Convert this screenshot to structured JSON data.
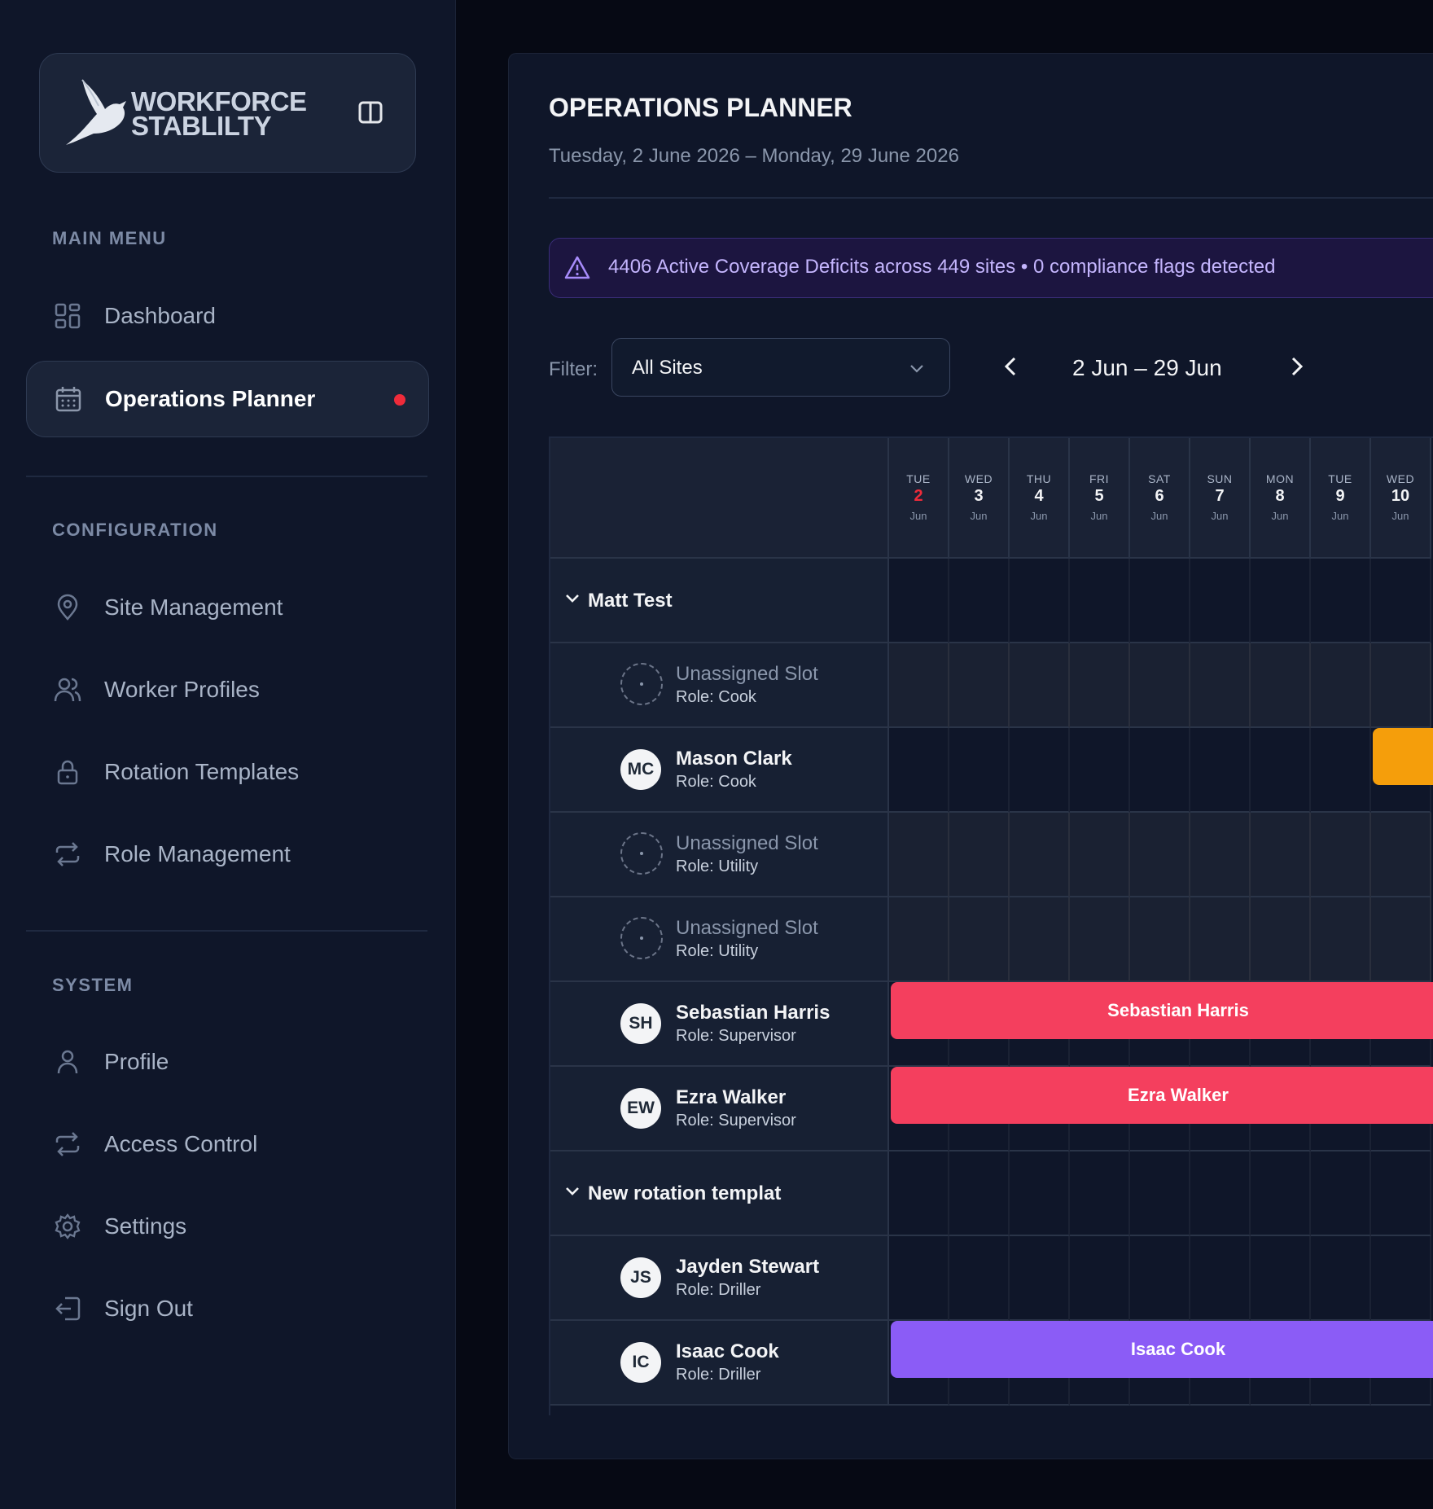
{
  "brand": {
    "line1": "WORKFORCE",
    "line2": "STABLILTY"
  },
  "sidebar": {
    "main_menu_label": "MAIN MENU",
    "main_items": [
      {
        "label": "Dashboard",
        "icon": "grid-icon"
      },
      {
        "label": "Operations Planner",
        "icon": "calendar-icon",
        "active": true
      }
    ],
    "config_label": "CONFIGURATION",
    "config_items": [
      {
        "label": "Site Management",
        "icon": "map-pin-icon"
      },
      {
        "label": "Worker Profiles",
        "icon": "users-icon"
      },
      {
        "label": "Rotation Templates",
        "icon": "lock-icon"
      },
      {
        "label": "Role Management",
        "icon": "repeat-icon"
      }
    ],
    "system_label": "SYSTEM",
    "system_items": [
      {
        "label": "Profile",
        "icon": "user-icon"
      },
      {
        "label": "Access Control",
        "icon": "repeat-icon"
      },
      {
        "label": "Settings",
        "icon": "gear-icon"
      },
      {
        "label": "Sign Out",
        "icon": "sign-out-icon"
      }
    ]
  },
  "page": {
    "title": "OPERATIONS PLANNER",
    "subtitle": "Tuesday, 2 June 2026 – Monday, 29 June 2026",
    "alert": "4406 Active Coverage Deficits across 449 sites • 0 compliance flags detected",
    "filter_label": "Filter:",
    "filter_value": "All Sites",
    "range_label": "2 Jun – 29 Jun"
  },
  "days": [
    {
      "dow": "TUE",
      "num": "2",
      "mon": "Jun",
      "today": true
    },
    {
      "dow": "WED",
      "num": "3",
      "mon": "Jun"
    },
    {
      "dow": "THU",
      "num": "4",
      "mon": "Jun"
    },
    {
      "dow": "FRI",
      "num": "5",
      "mon": "Jun"
    },
    {
      "dow": "SAT",
      "num": "6",
      "mon": "Jun"
    },
    {
      "dow": "SUN",
      "num": "7",
      "mon": "Jun"
    },
    {
      "dow": "MON",
      "num": "8",
      "mon": "Jun"
    },
    {
      "dow": "TUE",
      "num": "9",
      "mon": "Jun"
    },
    {
      "dow": "WED",
      "num": "10",
      "mon": "Jun"
    }
  ],
  "rows": [
    {
      "type": "group",
      "title": "Matt Test"
    },
    {
      "type": "slot",
      "name": "Unassigned Slot",
      "role": "Role: Cook"
    },
    {
      "type": "person",
      "initials": "MC",
      "name": "Mason Clark",
      "role": "Role: Cook",
      "bar": {
        "start_day": 8,
        "label": "",
        "color": "#f59e0b"
      }
    },
    {
      "type": "slot",
      "name": "Unassigned Slot",
      "role": "Role: Utility"
    },
    {
      "type": "slot",
      "name": "Unassigned Slot",
      "role": "Role: Utility"
    },
    {
      "type": "person",
      "initials": "SH",
      "name": "Sebastian Harris",
      "role": "Role: Supervisor",
      "bar": {
        "start_day": 0,
        "label": "Sebastian Harris",
        "color": "#f43f5e"
      }
    },
    {
      "type": "person",
      "initials": "EW",
      "name": "Ezra Walker",
      "role": "Role: Supervisor",
      "bar": {
        "start_day": 0,
        "label": "Ezra Walker",
        "color": "#f43f5e"
      }
    },
    {
      "type": "group",
      "title": "New rotation templat"
    },
    {
      "type": "person",
      "initials": "JS",
      "name": "Jayden Stewart",
      "role": "Role: Driller"
    },
    {
      "type": "person",
      "initials": "IC",
      "name": "Isaac Cook",
      "role": "Role: Driller",
      "bar": {
        "start_day": 0,
        "label": "Isaac Cook",
        "color": "#8b5cf6"
      }
    }
  ],
  "colors": {
    "accent": "#8b5cf6",
    "today": "#ef2b3a",
    "alert_text": "#c4b5fd"
  }
}
